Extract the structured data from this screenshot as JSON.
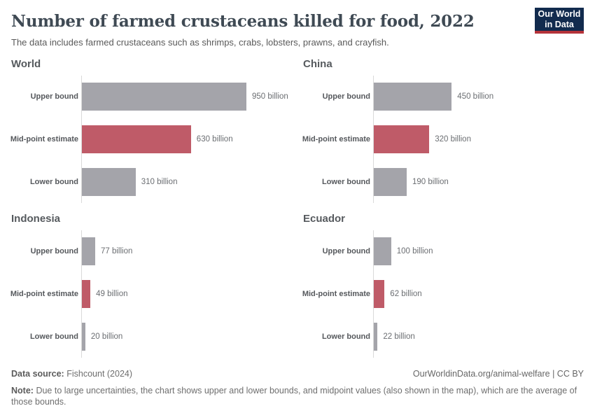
{
  "header": {
    "logo": {
      "line1": "Our World",
      "line2": "in Data",
      "bg_color": "#122b4e",
      "accent_color": "#b5333a"
    }
  },
  "chart_data": {
    "type": "bar",
    "orientation": "horizontal",
    "title": "Number of farmed crustaceans killed for food, 2022",
    "subtitle": "The data includes farmed crustaceans such as shrimps, crabs, lobsters, prawns, and crayfish.",
    "unit": "billion",
    "categories": [
      "Upper bound",
      "Mid-point estimate",
      "Lower bound"
    ],
    "xlim": [
      0,
      950
    ],
    "grid": false,
    "legend": "none",
    "panels": [
      {
        "title": "World",
        "values": [
          950,
          630,
          310
        ],
        "value_labels": [
          "950 billion",
          "630 billion",
          "310 billion"
        ]
      },
      {
        "title": "China",
        "values": [
          450,
          320,
          190
        ],
        "value_labels": [
          "450 billion",
          "320 billion",
          "190 billion"
        ]
      },
      {
        "title": "Indonesia",
        "values": [
          77,
          49,
          20
        ],
        "value_labels": [
          "77 billion",
          "49 billion",
          "20 billion"
        ]
      },
      {
        "title": "Ecuador",
        "values": [
          100,
          62,
          22
        ],
        "value_labels": [
          "100 billion",
          "62 billion",
          "22 billion"
        ]
      }
    ],
    "colors": {
      "bar": "#a4a4aa",
      "bar_midpoint": "#bf5b68",
      "axis": "#d9d9d9"
    }
  },
  "footer": {
    "datasource_label": "Data source:",
    "datasource_value": "Fishcount (2024)",
    "link": "OurWorldinData.org/animal-welfare | CC BY",
    "note_label": "Note:",
    "note_text": "Due to large uncertainties, the chart shows upper and lower bounds, and midpoint values (also shown in the map), which are the average of those bounds."
  }
}
